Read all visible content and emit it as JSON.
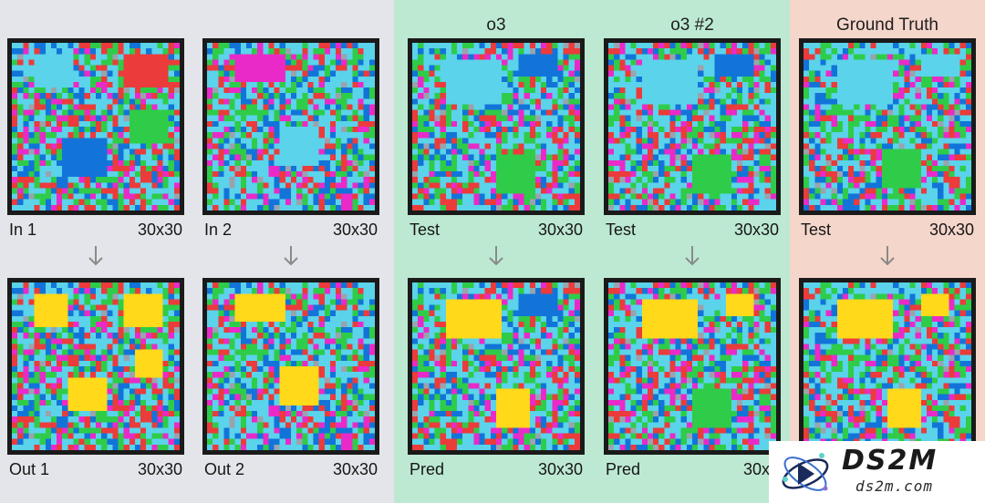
{
  "palette": {
    "background_examples": "#e4e5ea",
    "background_o3": "#bde9d2",
    "background_ground_truth": "#f5d6ca",
    "grid_border": "#1a1a1a",
    "cell_colors": [
      "#5bd3ea",
      "#eb3b3b",
      "#2ecc49",
      "#1274d9",
      "#ea2ac8",
      "#ffd91a",
      "#9aa3ad"
    ],
    "arrow": "#8a8a8a"
  },
  "columns": {
    "o3_title": "o3",
    "o3_2_title": "o3 #2",
    "ground_truth_title": "Ground Truth"
  },
  "examples": [
    {
      "input_label": "In 1",
      "input_size": "30x30",
      "output_label": "Out 1",
      "output_size": "30x30"
    },
    {
      "input_label": "In 2",
      "input_size": "30x30",
      "output_label": "Out 2",
      "output_size": "30x30"
    }
  ],
  "attempts": [
    {
      "test_label": "Test",
      "test_size": "30x30",
      "pred_label": "Pred",
      "pred_size": "30x30"
    },
    {
      "test_label": "Test",
      "test_size": "30x30",
      "pred_label": "Pred",
      "pred_size": "30x3"
    }
  ],
  "ground_truth": {
    "test_label": "Test",
    "test_size": "30x30"
  },
  "watermark": {
    "logo_text": "DS2M",
    "url": "ds2m.com"
  }
}
